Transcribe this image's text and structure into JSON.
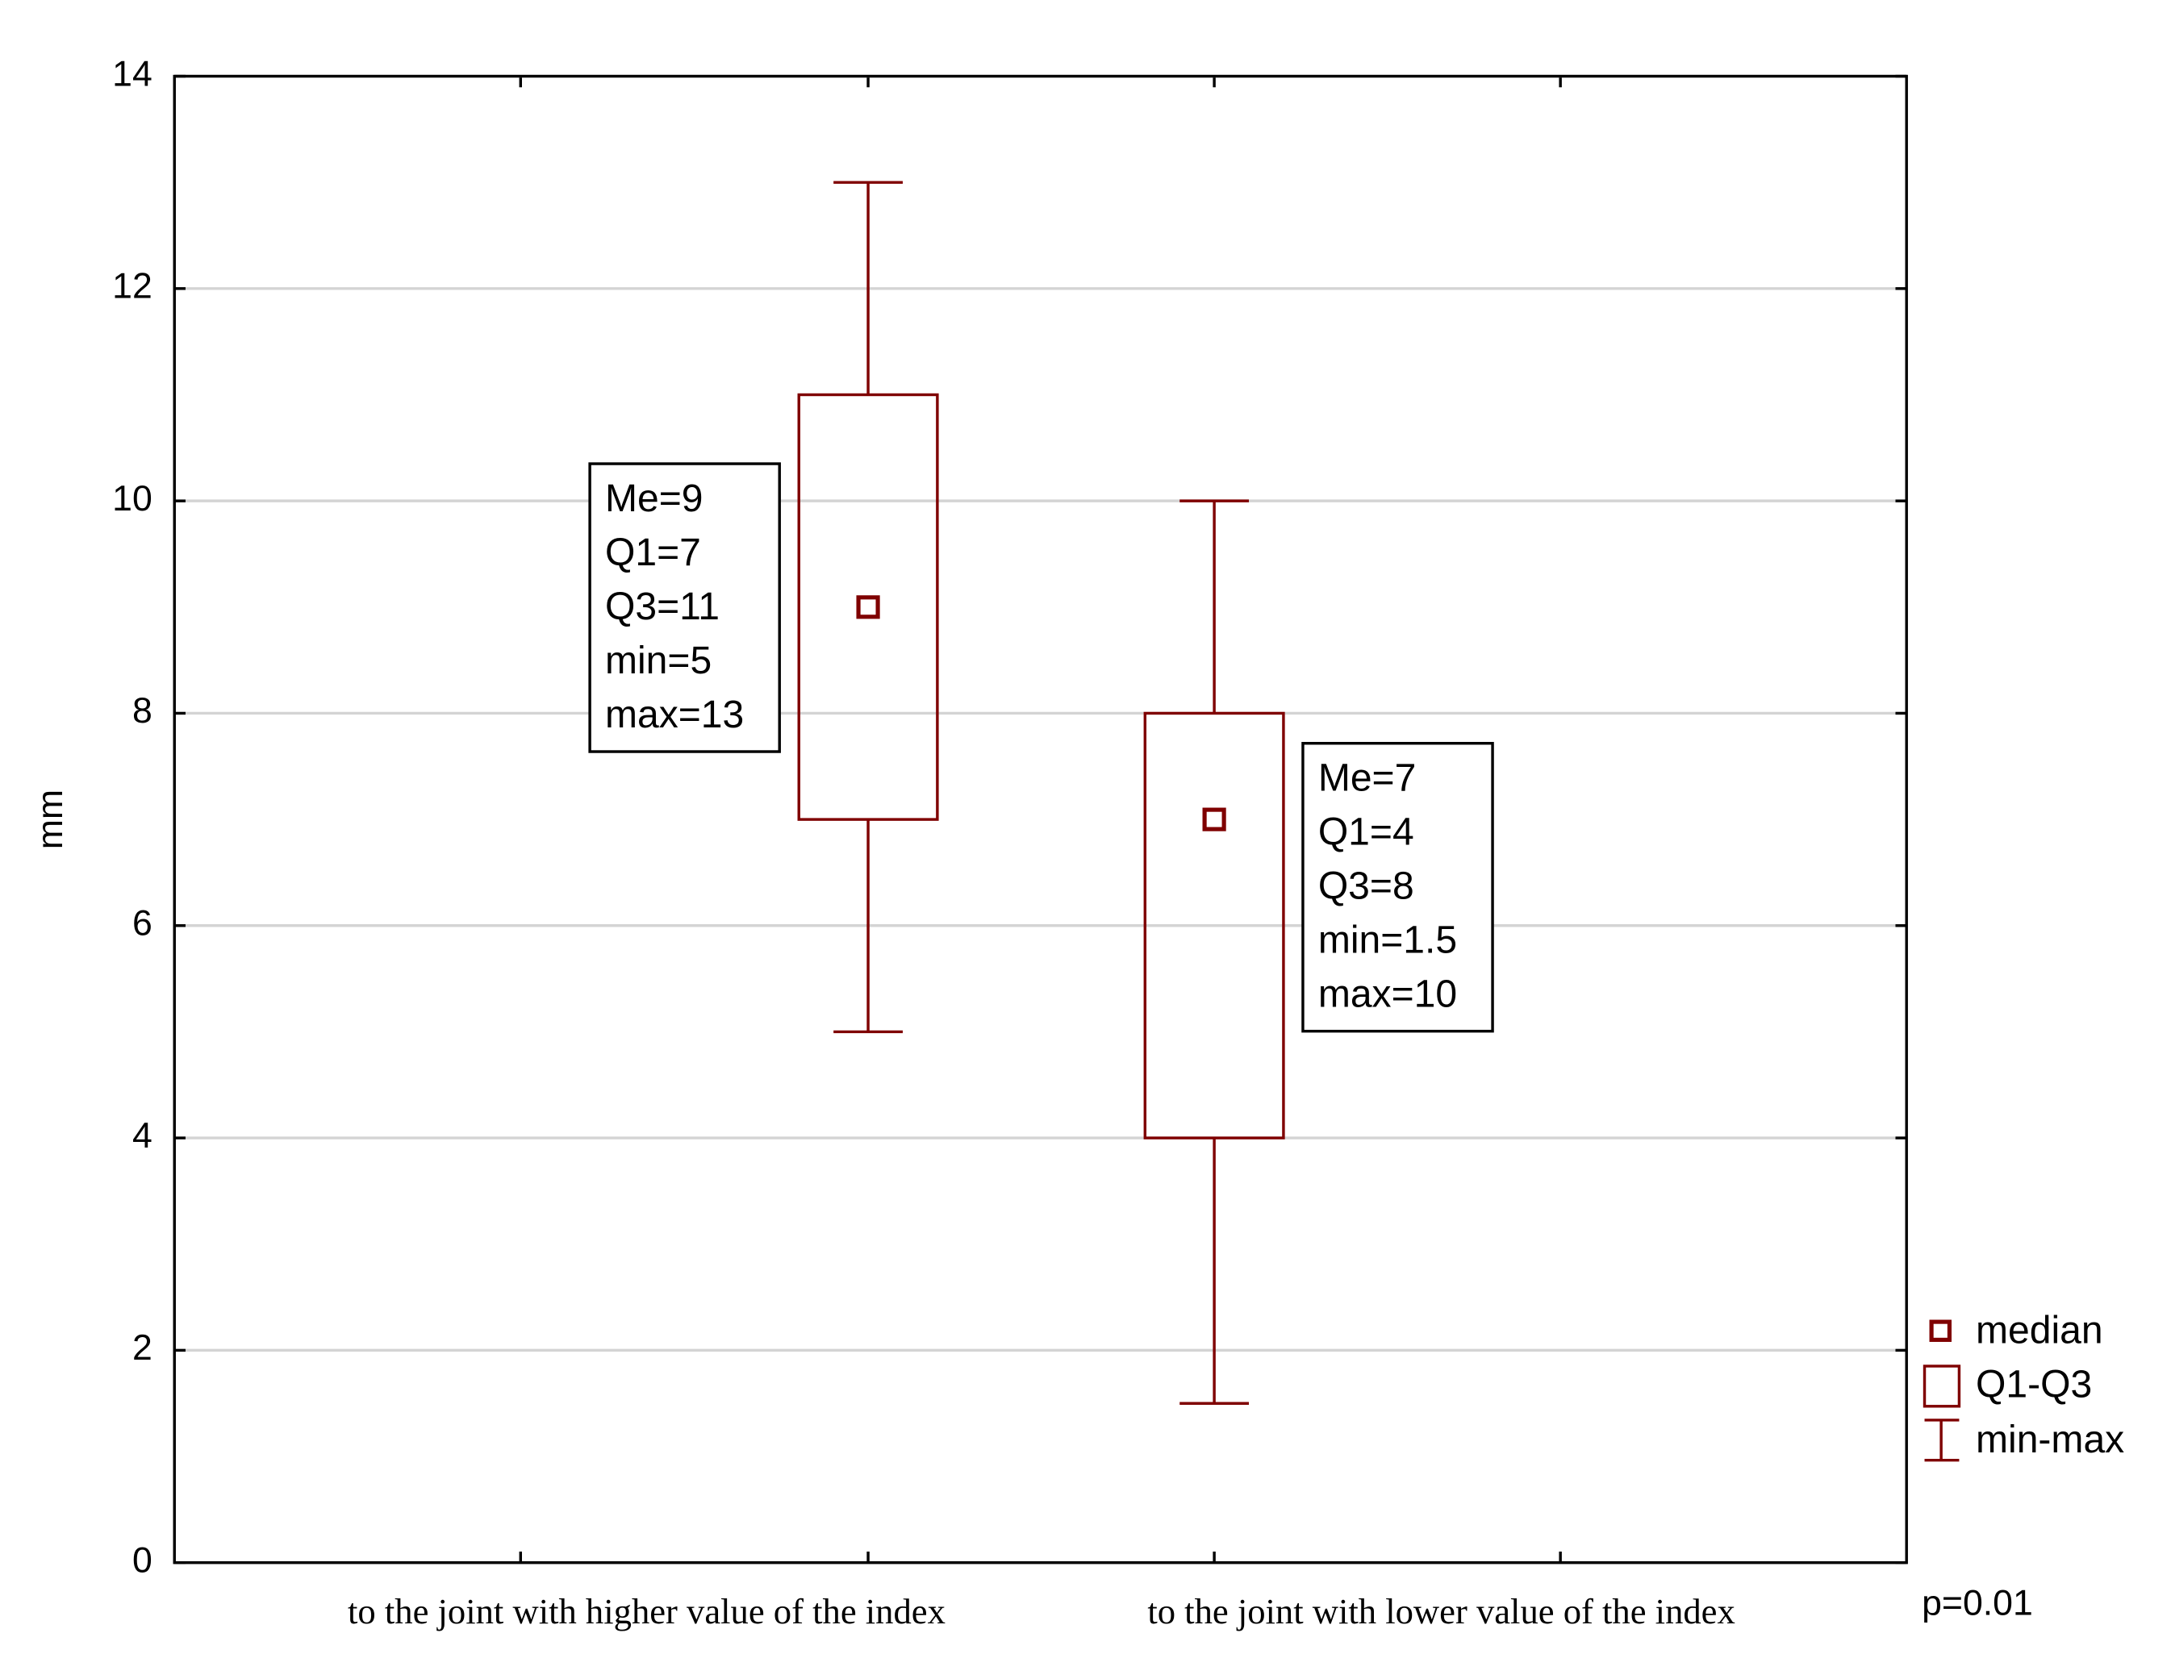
{
  "chart_data": {
    "type": "box",
    "y_label": "mm",
    "categories": [
      "to the joint with higher value of the index",
      "to the joint with lower value of the index"
    ],
    "median": [
      9,
      7
    ],
    "q1": [
      7,
      4
    ],
    "q3": [
      11,
      8
    ],
    "min": [
      5,
      1.5
    ],
    "max": [
      13,
      10
    ],
    "color": "#7f0000",
    "ylim": [
      0,
      14
    ],
    "yticks": [
      0,
      2,
      4,
      6,
      8,
      10,
      12,
      14
    ],
    "grid": true,
    "legend": [
      "median",
      "Q1-Q3",
      "min-max"
    ],
    "legend_position": "right",
    "annotations": [
      [
        "Me=9",
        "Q1=7",
        "Q3=11",
        "min=5",
        "max=13"
      ],
      [
        "Me=7",
        "Q1=4",
        "Q3=8",
        "min=1.5",
        "max=10"
      ]
    ],
    "note": "p=0.01"
  }
}
